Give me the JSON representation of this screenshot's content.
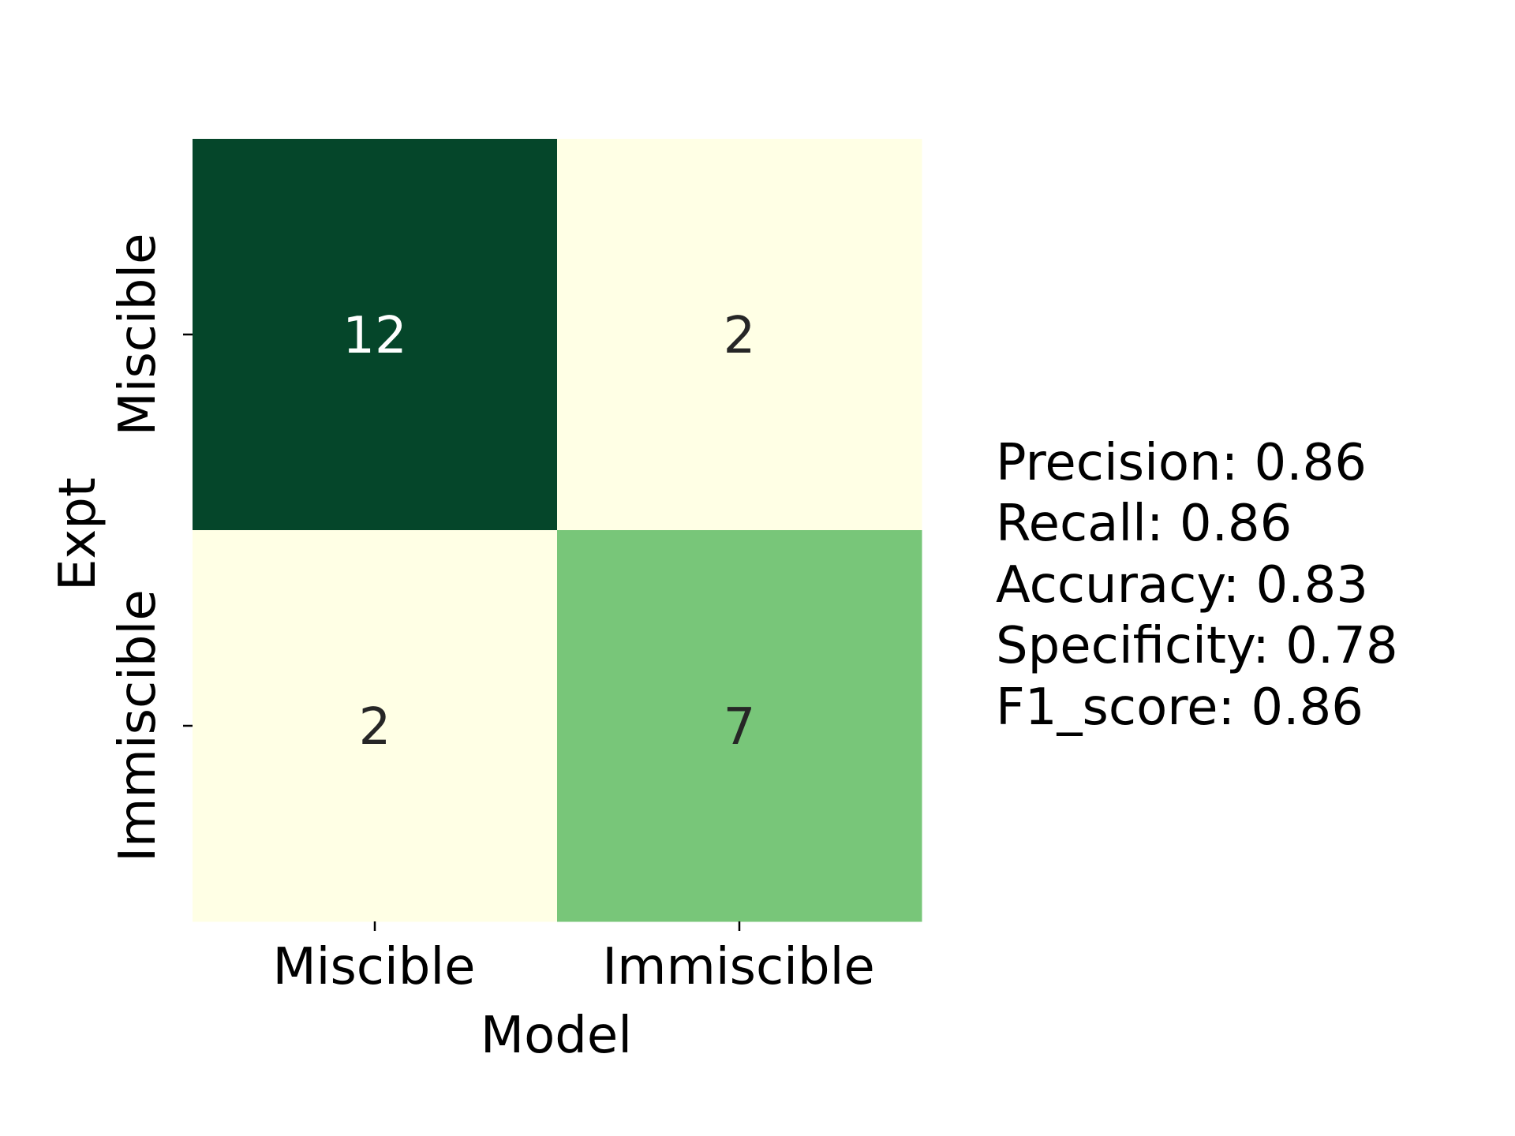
{
  "chart_data": {
    "type": "heatmap",
    "xlabel": "Model",
    "ylabel": "Expt",
    "x_categories": [
      "Miscible",
      "Immiscible"
    ],
    "y_categories": [
      "Miscible",
      "Immiscible"
    ],
    "values": [
      [
        12,
        2
      ],
      [
        2,
        7
      ]
    ],
    "colormap": "Greens",
    "color_range": [
      2,
      12
    ],
    "colors": {
      "low": "#ffffe5",
      "mid": "#78c679",
      "high": "#05462a",
      "text_dark": "#262626",
      "text_light": "#ffffff"
    },
    "colorbar": false
  },
  "metrics": [
    {
      "label": "Precision: 0.86"
    },
    {
      "label": "Recall: 0.86"
    },
    {
      "label": "Accuracy: 0.83"
    },
    {
      "label": "Specificity: 0.78"
    },
    {
      "label": "F1_score: 0.86"
    }
  ]
}
